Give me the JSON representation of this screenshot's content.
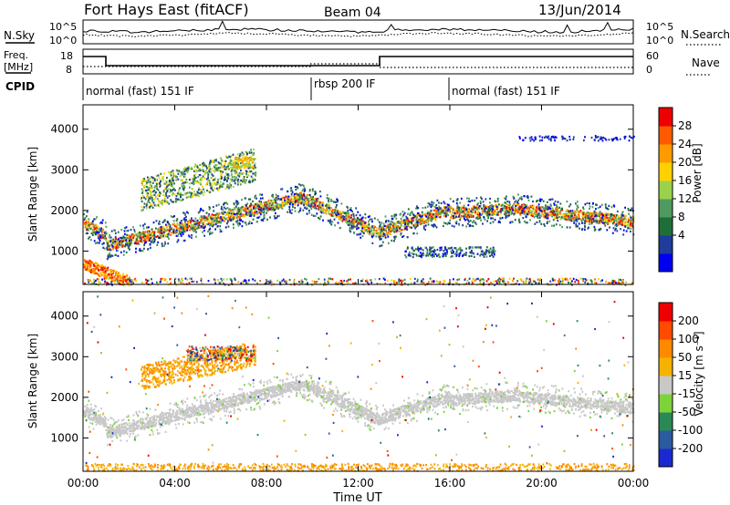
{
  "header": {
    "station": "Fort Hays East (fitACF)",
    "beam": "Beam 04",
    "date": "13/Jun/2014"
  },
  "sky_panel": {
    "left_label": "N.Sky",
    "left_ticks": [
      "10^5",
      "10^0"
    ],
    "right_label": "N.Search",
    "right_ticks": [
      "10^5",
      "10^0"
    ]
  },
  "freq_panel": {
    "left_label": "Freq.",
    "left_unit": "[MHz]",
    "left_ticks": [
      "18",
      "8"
    ],
    "right_label": "Nave",
    "right_ticks": [
      "60",
      "0"
    ]
  },
  "cpid": {
    "label": "CPID",
    "segments": [
      {
        "name": "normal (fast) 151 IF",
        "start": 0,
        "end": 10
      },
      {
        "name": "rbsp 200 IF",
        "start": 10,
        "end": 16
      },
      {
        "name": "normal (fast) 151 IF",
        "start": 16,
        "end": 24
      }
    ]
  },
  "chart_data": [
    {
      "type": "heatmap",
      "name": "power",
      "ylabel": "Slant Range [km]",
      "yticks": [
        "1000",
        "2000",
        "3000",
        "4000"
      ],
      "ylim": [
        180,
        4600
      ],
      "colorbar_label": "Power [dB]",
      "colorbar_ticks": [
        "28",
        "24",
        "20",
        "16",
        "12",
        "8",
        "4"
      ],
      "colorbar_colors": [
        "#0000ee",
        "#1e3c9a",
        "#1f6e3a",
        "#4f9a5f",
        "#9bd24b",
        "#ffd100",
        "#ff9a00",
        "#ff5a00",
        "#ee0000"
      ]
    },
    {
      "type": "heatmap",
      "name": "velocity",
      "ylabel": "Slant Range [km]",
      "yticks": [
        "1000",
        "2000",
        "3000",
        "4000"
      ],
      "ylim": [
        180,
        4600
      ],
      "xlabel": "Time UT",
      "xticks": [
        "00:00",
        "04:00",
        "08:00",
        "12:00",
        "16:00",
        "20:00",
        "00:00"
      ],
      "xlim": [
        0,
        24
      ],
      "colorbar_label": "Velocity [m s⁻¹]",
      "colorbar_ticks": [
        "200",
        "100",
        "50",
        "15",
        "-15",
        "-50",
        "-100",
        "-200"
      ],
      "colorbar_colors": [
        "#1a2ad0",
        "#2a5aa0",
        "#2a8a55",
        "#7ed23a",
        "#c8c8c8",
        "#f4b300",
        "#ff8a00",
        "#ff4a00",
        "#ee0000"
      ]
    }
  ]
}
